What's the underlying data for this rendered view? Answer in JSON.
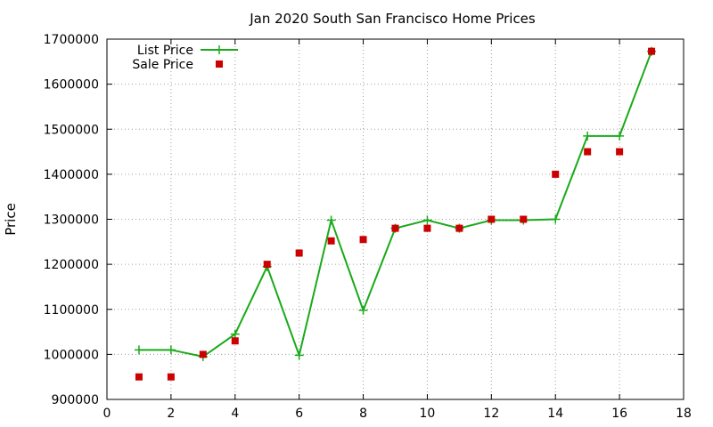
{
  "chart_data": {
    "type": "line",
    "title": "Jan 2020 South San Francisco Home Prices",
    "xlabel": "",
    "ylabel": "Price",
    "xlim": [
      0,
      18
    ],
    "ylim": [
      900000,
      1700000
    ],
    "x_ticks": [
      0,
      2,
      4,
      6,
      8,
      10,
      12,
      14,
      16,
      18
    ],
    "y_ticks": [
      900000,
      1000000,
      1100000,
      1200000,
      1300000,
      1400000,
      1500000,
      1600000,
      1700000
    ],
    "grid": true,
    "legend_position": "top-left",
    "series": [
      {
        "name": "List Price",
        "style": "line-plus",
        "color": "#1aaa1a",
        "points": [
          [
            1,
            1010000
          ],
          [
            2,
            1010000
          ],
          [
            3,
            995000
          ],
          [
            4,
            1045000
          ],
          [
            5,
            1195000
          ],
          [
            6,
            998000
          ],
          [
            7,
            1298000
          ],
          [
            8,
            1098000
          ],
          [
            9,
            1280000
          ],
          [
            10,
            1298000
          ],
          [
            11,
            1280000
          ],
          [
            12,
            1298000
          ],
          [
            13,
            1298000
          ],
          [
            14,
            1300000
          ],
          [
            15,
            1485000
          ],
          [
            16,
            1485000
          ],
          [
            17,
            1673000
          ]
        ]
      },
      {
        "name": "Sale Price",
        "style": "square",
        "color": "#cc0000",
        "points": [
          [
            1,
            950000
          ],
          [
            2,
            950000
          ],
          [
            3,
            1000000
          ],
          [
            4,
            1030000
          ],
          [
            5,
            1200000
          ],
          [
            6,
            1225000
          ],
          [
            7,
            1252000
          ],
          [
            8,
            1255000
          ],
          [
            9,
            1280000
          ],
          [
            10,
            1280000
          ],
          [
            11,
            1280000
          ],
          [
            12,
            1300000
          ],
          [
            13,
            1300000
          ],
          [
            14,
            1400000
          ],
          [
            15,
            1450000
          ],
          [
            16,
            1450000
          ],
          [
            17,
            1673000
          ]
        ]
      }
    ]
  }
}
